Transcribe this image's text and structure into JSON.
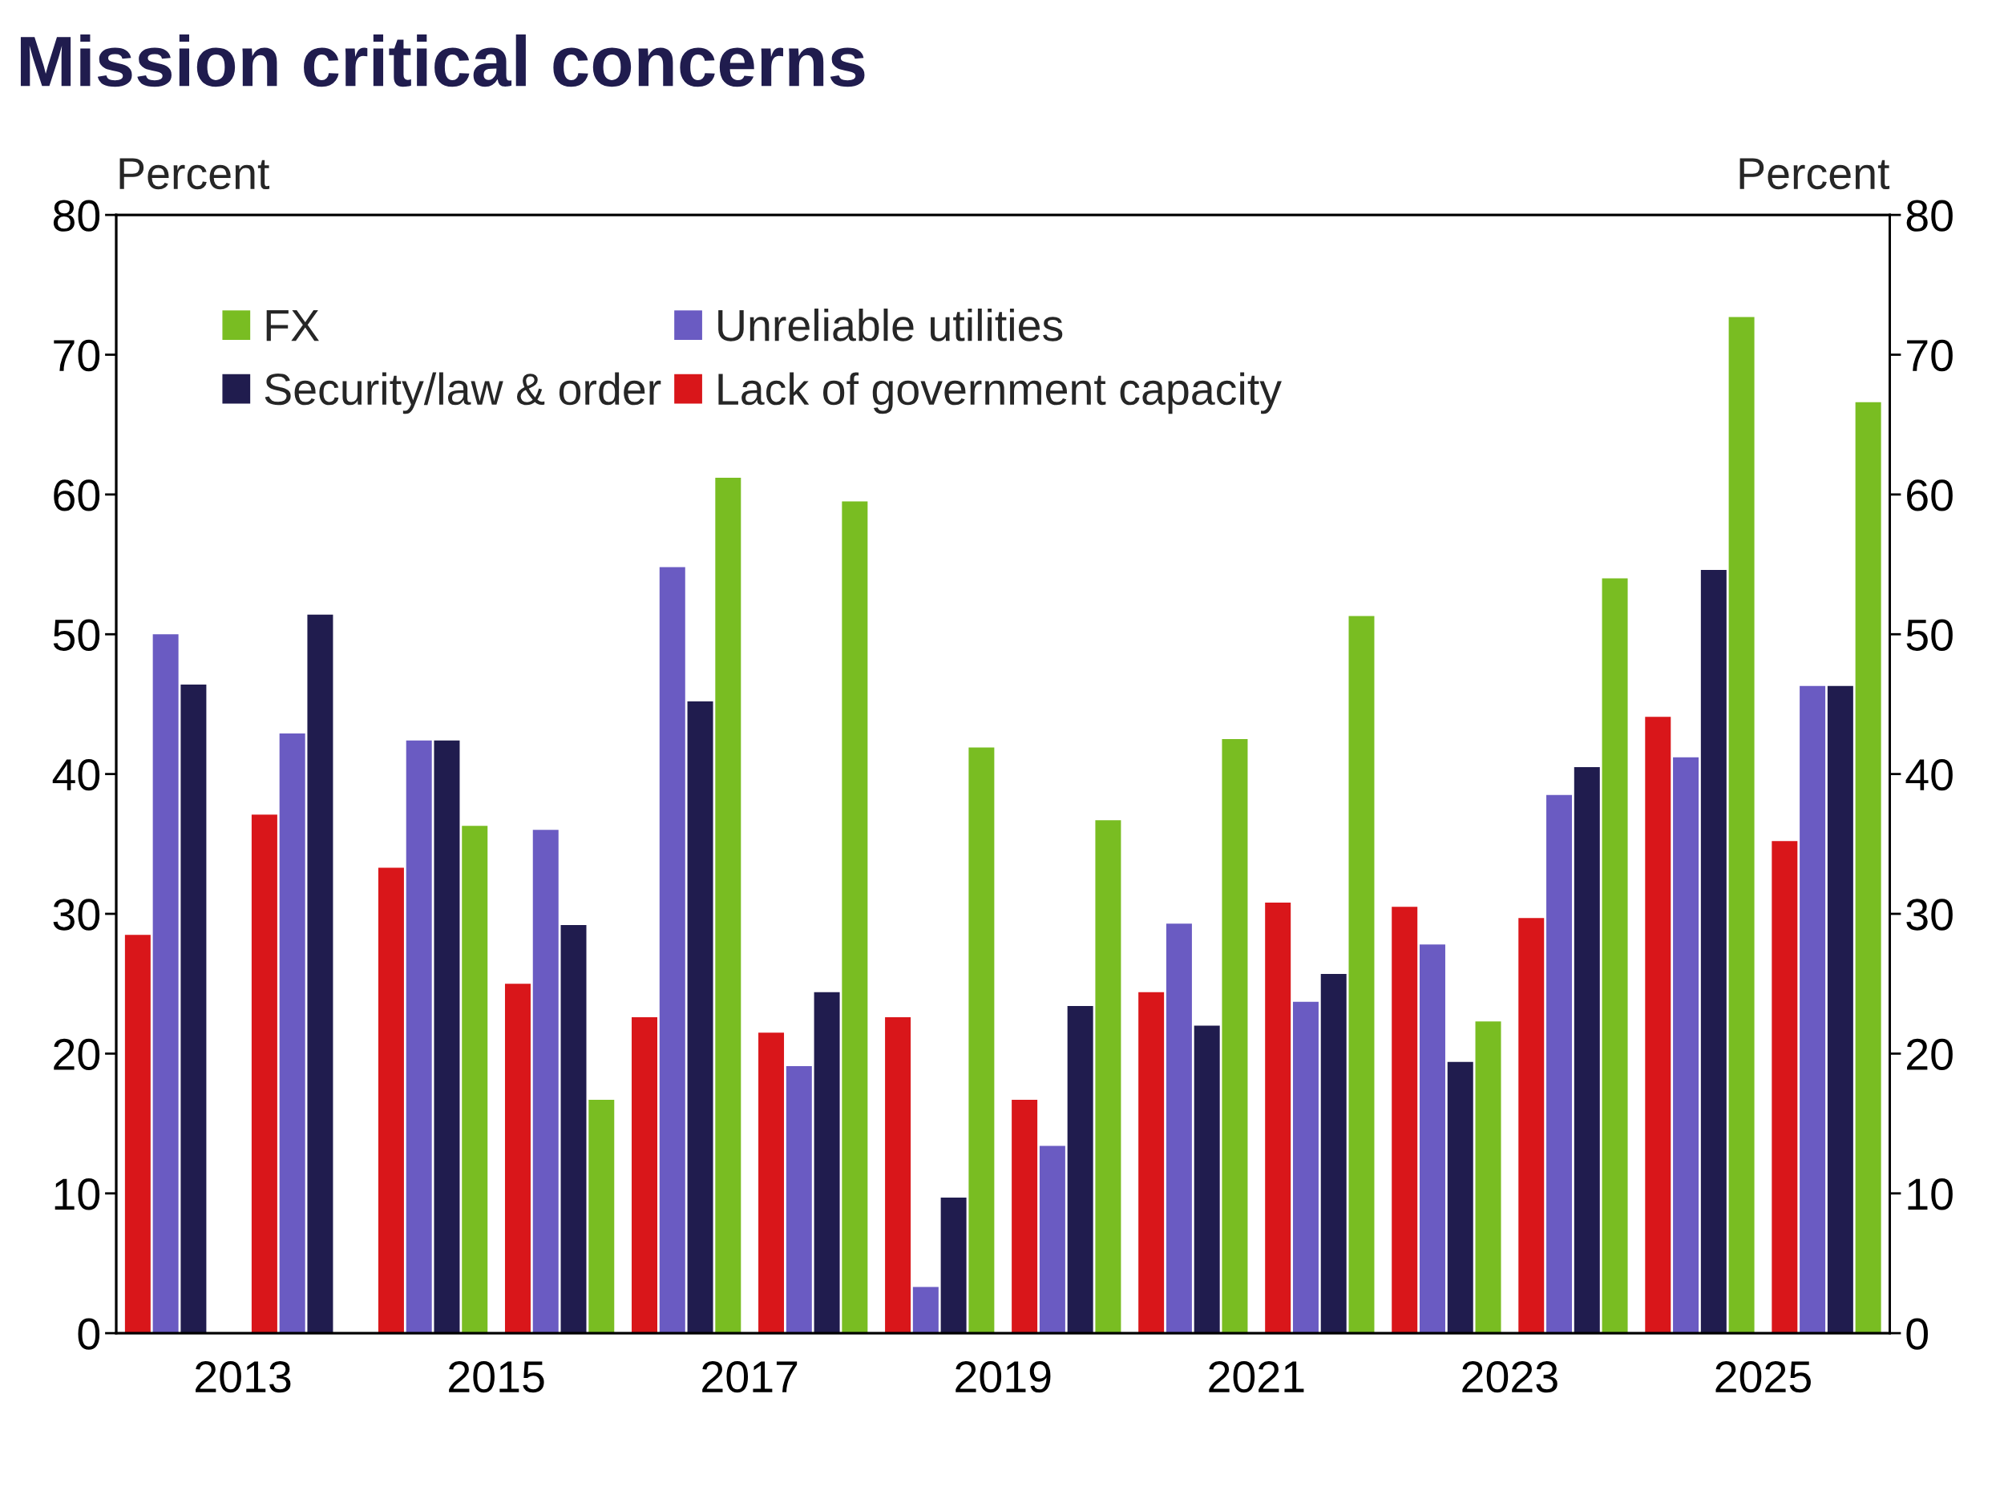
{
  "chart_data": {
    "type": "bar",
    "title": "Mission critical concerns",
    "ylabel": "Percent",
    "y2label": "Percent",
    "x": [
      2012.5,
      2013.5,
      2014.5,
      2015.5,
      2016.5,
      2017.5,
      2018.5,
      2019.5,
      2020.5,
      2021.5,
      2022.5,
      2023.5,
      2024.5,
      2025.5
    ],
    "series": [
      {
        "name": "Lack of government capacity",
        "color": "#d9161a",
        "values": [
          28.5,
          37.1,
          33.3,
          25.0,
          22.6,
          21.5,
          22.6,
          16.7,
          24.4,
          30.8,
          30.5,
          29.7,
          44.1,
          35.2
        ]
      },
      {
        "name": "Unreliable utilities",
        "color": "#6a5bc2",
        "values": [
          50.0,
          42.9,
          42.4,
          36.0,
          54.8,
          19.1,
          3.3,
          13.4,
          29.3,
          23.7,
          27.8,
          38.5,
          41.2,
          46.3
        ]
      },
      {
        "name": "Security/law & order",
        "color": "#201c4e",
        "values": [
          46.4,
          51.4,
          42.4,
          29.2,
          45.2,
          24.4,
          9.7,
          23.4,
          22.0,
          25.7,
          19.4,
          40.5,
          54.6,
          46.3
        ]
      },
      {
        "name": "FX",
        "color": "#79bd22",
        "values": [
          null,
          null,
          36.3,
          16.7,
          61.2,
          59.5,
          41.9,
          36.7,
          42.5,
          51.3,
          22.3,
          54.0,
          72.7,
          66.6
        ]
      }
    ],
    "xlim": [
      2012,
      2026
    ],
    "xticks": [
      2013,
      2015,
      2017,
      2019,
      2021,
      2023,
      2025
    ],
    "ylim": [
      0,
      80
    ],
    "yticks": [
      0,
      10,
      20,
      30,
      40,
      50,
      60,
      70,
      80
    ],
    "y2lim": [
      0,
      80
    ],
    "y2ticks": [
      0,
      10,
      20,
      30,
      40,
      50,
      60,
      70,
      80
    ],
    "grid": false,
    "legend": "top left"
  }
}
